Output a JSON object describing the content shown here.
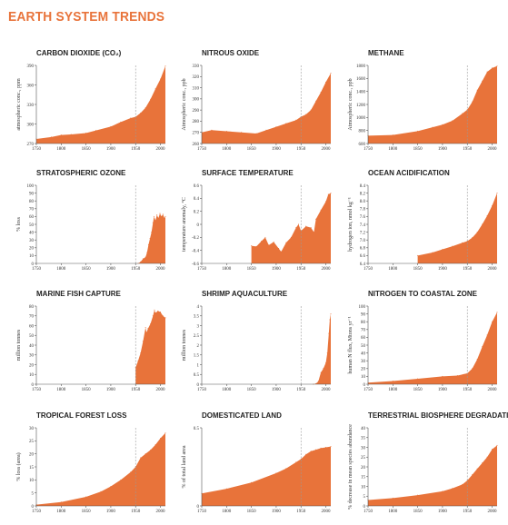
{
  "title": "EARTH SYSTEM TRENDS",
  "colors": {
    "fill": "#e8733a",
    "title": "#e8733a",
    "axis": "#555555",
    "reference": "#999999"
  },
  "chart_data": [
    {
      "type": "area",
      "title": "CARBON DIOXIDE (CO₂)",
      "ylabel": "atmospheric conc., ppm",
      "xlim": [
        1750,
        2010
      ],
      "ylim": [
        270,
        390
      ],
      "x_ticks": [
        "1750",
        "1800",
        "1850",
        "1900",
        "1950",
        "2000"
      ],
      "y_ticks": [
        "270",
        "300",
        "330",
        "360",
        "390"
      ],
      "x": [
        1750,
        1780,
        1800,
        1820,
        1850,
        1870,
        1900,
        1920,
        1940,
        1950,
        1960,
        1970,
        1980,
        1990,
        2000,
        2010
      ],
      "y": [
        277,
        280,
        283,
        284,
        286,
        290,
        296,
        303,
        309,
        311,
        317,
        325,
        338,
        354,
        369,
        389
      ]
    },
    {
      "type": "area",
      "title": "NITROUS OXIDE",
      "ylabel": "Atmospheric conc., ppb",
      "xlim": [
        1750,
        2010
      ],
      "ylim": [
        260,
        330
      ],
      "x_ticks": [
        "1750",
        "1800",
        "1850",
        "1900",
        "1950",
        "2000"
      ],
      "y_ticks": [
        "260",
        "270",
        "280",
        "290",
        "300",
        "310",
        "320",
        "330"
      ],
      "x": [
        1750,
        1770,
        1800,
        1830,
        1860,
        1880,
        1900,
        1920,
        1940,
        1950,
        1960,
        1970,
        1980,
        1990,
        2000,
        2010
      ],
      "y": [
        270,
        272,
        271,
        270,
        269,
        272,
        275,
        278,
        281,
        284,
        286,
        290,
        298,
        306,
        315,
        323
      ]
    },
    {
      "type": "area",
      "title": "METHANE",
      "ylabel": "Atmospheric conc., ppb",
      "xlim": [
        1750,
        2010
      ],
      "ylim": [
        600,
        1800
      ],
      "x_ticks": [
        "1750",
        "1800",
        "1850",
        "1900",
        "1950",
        "2000"
      ],
      "y_ticks": [
        "600",
        "800",
        "1000",
        "1200",
        "1400",
        "1600",
        "1800"
      ],
      "x": [
        1750,
        1800,
        1850,
        1880,
        1900,
        1920,
        1940,
        1950,
        1960,
        1970,
        1980,
        1990,
        2000,
        2010
      ],
      "y": [
        720,
        730,
        790,
        850,
        890,
        950,
        1060,
        1120,
        1240,
        1420,
        1560,
        1700,
        1760,
        1790
      ]
    },
    {
      "type": "area",
      "title": "STRATOSPHERIC OZONE",
      "ylabel": "% loss",
      "xlim": [
        1750,
        2010
      ],
      "ylim": [
        0,
        100
      ],
      "x_ticks": [
        "1750",
        "1800",
        "1850",
        "1900",
        "1950",
        "2000"
      ],
      "y_ticks": [
        "0",
        "10",
        "20",
        "30",
        "40",
        "50",
        "60",
        "70",
        "80",
        "90",
        "100"
      ],
      "x": [
        1955,
        1960,
        1965,
        1970,
        1973,
        1976,
        1979,
        1982,
        1985,
        1987,
        1990,
        1993,
        1996,
        1999,
        2002,
        2005,
        2008,
        2010
      ],
      "y": [
        0,
        2,
        6,
        8,
        14,
        24,
        32,
        40,
        52,
        60,
        55,
        62,
        58,
        64,
        60,
        63,
        58,
        60
      ]
    },
    {
      "type": "area",
      "title": "SURFACE TEMPERATURE",
      "ylabel": "temperature anomaly, °C",
      "xlim": [
        1750,
        2010
      ],
      "ylim": [
        -0.6,
        0.6
      ],
      "x_ticks": [
        "1750",
        "1800",
        "1850",
        "1900",
        "1950",
        "2000"
      ],
      "y_ticks": [
        "-0.6",
        "-0.4",
        "-0.2",
        "0",
        "0.2",
        "0.4",
        "0.6"
      ],
      "x": [
        1850,
        1860,
        1870,
        1878,
        1885,
        1895,
        1905,
        1910,
        1920,
        1930,
        1940,
        1945,
        1950,
        1960,
        1970,
        1976,
        1980,
        1990,
        2000,
        2005,
        2010
      ],
      "y": [
        -0.33,
        -0.34,
        -0.26,
        -0.2,
        -0.32,
        -0.27,
        -0.37,
        -0.42,
        -0.28,
        -0.2,
        -0.05,
        0.0,
        -0.1,
        -0.03,
        -0.05,
        -0.12,
        0.08,
        0.22,
        0.35,
        0.46,
        0.48
      ]
    },
    {
      "type": "area",
      "title": "OCEAN ACIDIFICATION",
      "ylabel": "hydrogen ion, nmol kg⁻¹",
      "xlim": [
        1750,
        2010
      ],
      "ylim": [
        6.4,
        8.4
      ],
      "x_ticks": [
        "1750",
        "1800",
        "1850",
        "1900",
        "1950",
        "2000"
      ],
      "y_ticks": [
        "6.4",
        "6.6",
        "6.8",
        "7.0",
        "7.2",
        "7.4",
        "7.6",
        "7.8",
        "8.0",
        "8.2",
        "8.4"
      ],
      "x": [
        1850,
        1880,
        1900,
        1920,
        1940,
        1950,
        1960,
        1970,
        1980,
        1990,
        2000,
        2010
      ],
      "y": [
        6.6,
        6.68,
        6.76,
        6.84,
        6.93,
        6.97,
        7.06,
        7.2,
        7.4,
        7.62,
        7.88,
        8.2
      ]
    },
    {
      "type": "area",
      "title": "MARINE FISH CAPTURE",
      "ylabel": "million tonnes",
      "xlim": [
        1750,
        2010
      ],
      "ylim": [
        0,
        80
      ],
      "x_ticks": [
        "1750",
        "1800",
        "1850",
        "1900",
        "1950",
        "2000"
      ],
      "y_ticks": [
        "0",
        "10",
        "20",
        "30",
        "40",
        "50",
        "60",
        "70",
        "80"
      ],
      "x": [
        1950,
        1955,
        1960,
        1965,
        1970,
        1972,
        1975,
        1980,
        1985,
        1988,
        1990,
        1995,
        2000,
        2005,
        2010
      ],
      "y": [
        17,
        24,
        32,
        44,
        58,
        53,
        57,
        62,
        70,
        76,
        73,
        75,
        74,
        70,
        68
      ]
    },
    {
      "type": "area",
      "title": "SHRIMP AQUACULTURE",
      "ylabel": "million tonnes",
      "xlim": [
        1750,
        2010
      ],
      "ylim": [
        0,
        4
      ],
      "x_ticks": [
        "1750",
        "1800",
        "1850",
        "1900",
        "1950",
        "2000"
      ],
      "y_ticks": [
        "0",
        "0.5",
        "1",
        "1.5",
        "2",
        "2.5",
        "3",
        "3.5",
        "4"
      ],
      "x": [
        1975,
        1980,
        1985,
        1990,
        1995,
        2000,
        2003,
        2006,
        2008,
        2010
      ],
      "y": [
        0.0,
        0.03,
        0.15,
        0.6,
        0.8,
        1.1,
        1.6,
        2.6,
        3.3,
        3.6
      ]
    },
    {
      "type": "area",
      "title": "NITROGEN TO COASTAL ZONE",
      "ylabel": "human N flux, Mtons yr⁻¹",
      "xlim": [
        1750,
        2010
      ],
      "ylim": [
        0,
        100
      ],
      "x_ticks": [
        "1750",
        "1800",
        "1850",
        "1900",
        "1950",
        "2000"
      ],
      "y_ticks": [
        "0",
        "10",
        "20",
        "30",
        "40",
        "50",
        "60",
        "70",
        "80",
        "90",
        "100"
      ],
      "x": [
        1750,
        1800,
        1850,
        1900,
        1930,
        1950,
        1960,
        1970,
        1980,
        1990,
        2000,
        2010
      ],
      "y": [
        2,
        4,
        7,
        10,
        11,
        14,
        20,
        32,
        48,
        63,
        80,
        92
      ]
    },
    {
      "type": "area",
      "title": "TROPICAL FOREST LOSS",
      "ylabel": "% loss (area)",
      "xlim": [
        1750,
        2010
      ],
      "ylim": [
        0,
        30
      ],
      "x_ticks": [
        "1750",
        "1800",
        "1850",
        "1900",
        "1950",
        "2000"
      ],
      "y_ticks": [
        "0",
        "5",
        "10",
        "15",
        "20",
        "25",
        "30"
      ],
      "x": [
        1750,
        1800,
        1850,
        1880,
        1900,
        1920,
        1940,
        1950,
        1960,
        1970,
        1980,
        1990,
        2000,
        2010
      ],
      "y": [
        0.5,
        1.5,
        3.5,
        5.5,
        7.5,
        10,
        13,
        15,
        18.5,
        20,
        21.5,
        23.5,
        26,
        28
      ]
    },
    {
      "type": "area",
      "title": "DOMESTICATED LAND",
      "ylabel": "% of total land area",
      "xlim": [
        1750,
        2010
      ],
      "ylim": [
        0,
        0.5
      ],
      "x_ticks": [
        "1750",
        "1800",
        "1850",
        "1900",
        "1950",
        "2000"
      ],
      "y_ticks": [
        "0",
        "0.5"
      ],
      "x": [
        1750,
        1800,
        1850,
        1900,
        1920,
        1940,
        1950,
        1960,
        1970,
        1980,
        1990,
        2000,
        2010
      ],
      "y": [
        0.08,
        0.11,
        0.15,
        0.21,
        0.24,
        0.28,
        0.3,
        0.33,
        0.35,
        0.36,
        0.37,
        0.375,
        0.38
      ]
    },
    {
      "type": "area",
      "title": "TERRESTRIAL BIOSPHERE DEGRADATION",
      "ylabel": "% decrease in mean species abundance",
      "xlim": [
        1750,
        2010
      ],
      "ylim": [
        0,
        40
      ],
      "x_ticks": [
        "1750",
        "1800",
        "1850",
        "1900",
        "1950",
        "2000"
      ],
      "y_ticks": [
        "0",
        "5",
        "10",
        "15",
        "20",
        "25",
        "30",
        "35",
        "40"
      ],
      "x": [
        1750,
        1800,
        1850,
        1900,
        1920,
        1940,
        1950,
        1960,
        1970,
        1980,
        1990,
        2000,
        2010
      ],
      "y": [
        3,
        4,
        5.5,
        7.5,
        9,
        11,
        13,
        16,
        19,
        22,
        25,
        29,
        31
      ]
    }
  ]
}
